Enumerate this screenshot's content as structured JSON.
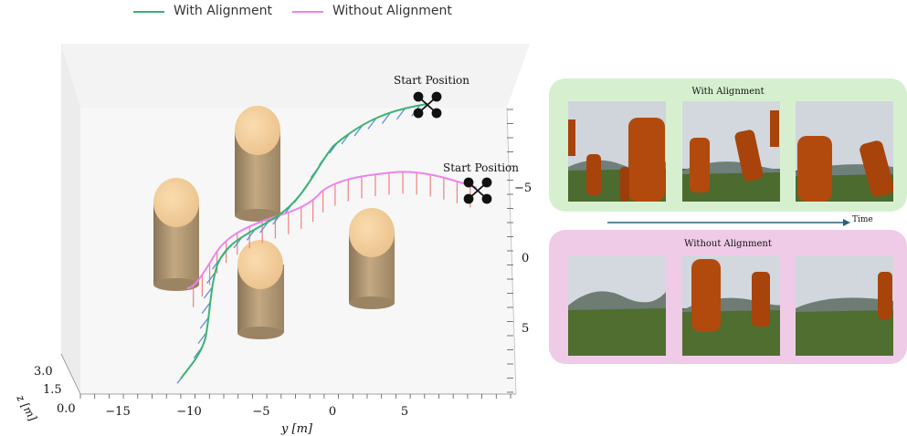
{
  "chart_data": {
    "type": "line",
    "series": [
      {
        "name": "With Alignment",
        "color": "#3bb273"
      },
      {
        "name": "Without Alignment",
        "color": "#ee82ee"
      }
    ],
    "xlabel": "y [m]",
    "zlabel": "z [m]",
    "x_ticks": [
      "−15",
      "−10",
      "−5",
      "0",
      "5"
    ],
    "z_ticks": [
      "3.0",
      "1.5",
      "0.0"
    ],
    "right_ticks": [
      "−5",
      "0",
      "5"
    ],
    "annotations": [
      "Start Position",
      "Start Position"
    ],
    "heading_arrow_colors": {
      "with": "#5b8fd9",
      "without": "#f08080"
    }
  },
  "panels": {
    "with": {
      "title": "With Alignment",
      "bg": "#d6f0cf"
    },
    "without": {
      "title": "Without Alignment",
      "bg": "#efcbe8"
    }
  },
  "timeline": {
    "label": "Time",
    "color": "#2d5f7a"
  }
}
